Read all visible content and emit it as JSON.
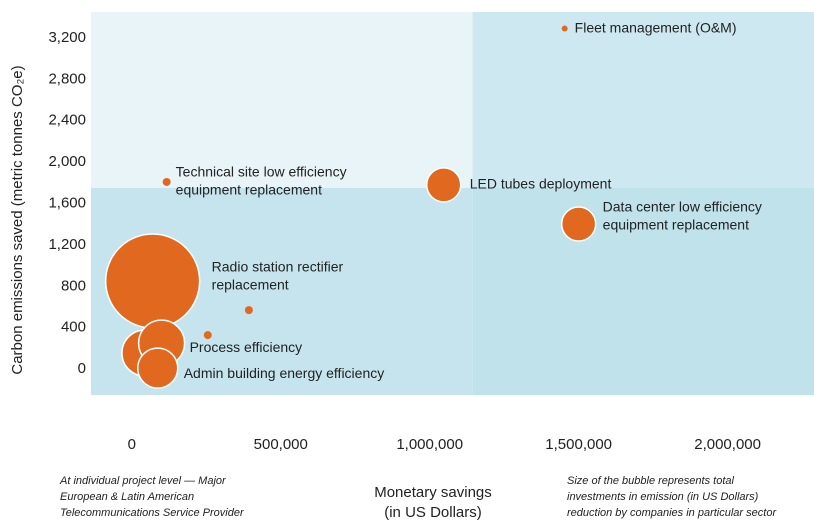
{
  "chart_data": {
    "type": "scatter",
    "y_label": "Carbon emissions saved (metric tonnes CO₂e)",
    "x_label": [
      "Monetary savings",
      "(in US Dollars)"
    ],
    "note_left": [
      "At individual project level — Major",
      "European & Latin American",
      "Telecommunications Service Provider"
    ],
    "note_right": [
      "Size of the bubble represents total",
      "investments in emission (in US Dollars)",
      "reduction by companies in particular sector"
    ],
    "x": [
      1453000,
      117000,
      1047000,
      1500000,
      70000,
      393000,
      255000,
      44000,
      100000,
      87000
    ],
    "values": [
      3290,
      1808,
      1780,
      1402,
      851,
      570,
      329,
      155,
      251,
      10
    ],
    "sizes": [
      9,
      16,
      289,
      289,
      2209,
      16,
      16,
      529,
      529,
      400
    ],
    "labels": [
      [
        "Fleet management (O&M)"
      ],
      [
        "Technical site low efficiency",
        "equipment replacement"
      ],
      [
        "LED tubes deployment"
      ],
      [
        "Data center low efficiency",
        "equipment replacement"
      ],
      [
        "Radio station rectifier",
        "replacement"
      ],
      null,
      null,
      null,
      [
        "Process efficiency"
      ],
      [
        "Admin building energy efficiency"
      ]
    ],
    "color": "#e0691f",
    "quadrant_split": {
      "x": 1144000,
      "y": 1750
    },
    "xlim": [
      -137000,
      2290000
    ],
    "ylim": [
      -250,
      3450
    ],
    "xticks": [
      0,
      {
        "value": 500000,
        "label": "500,000"
      },
      {
        "value": 1000000,
        "label": "1,000,000"
      },
      {
        "value": 1500000,
        "label": "1,500,000"
      },
      {
        "value": 2000000,
        "label": "2,000,000"
      }
    ],
    "yticks": [
      0,
      400,
      800,
      {
        "value": 1200,
        "label": "1,200"
      },
      {
        "value": 1600,
        "label": "1,600"
      },
      {
        "value": 2000,
        "label": "2,000"
      },
      {
        "value": 2400,
        "label": "2,400"
      },
      {
        "value": 2800,
        "label": "2,800"
      },
      {
        "value": 3200,
        "label": "3,200"
      }
    ]
  }
}
